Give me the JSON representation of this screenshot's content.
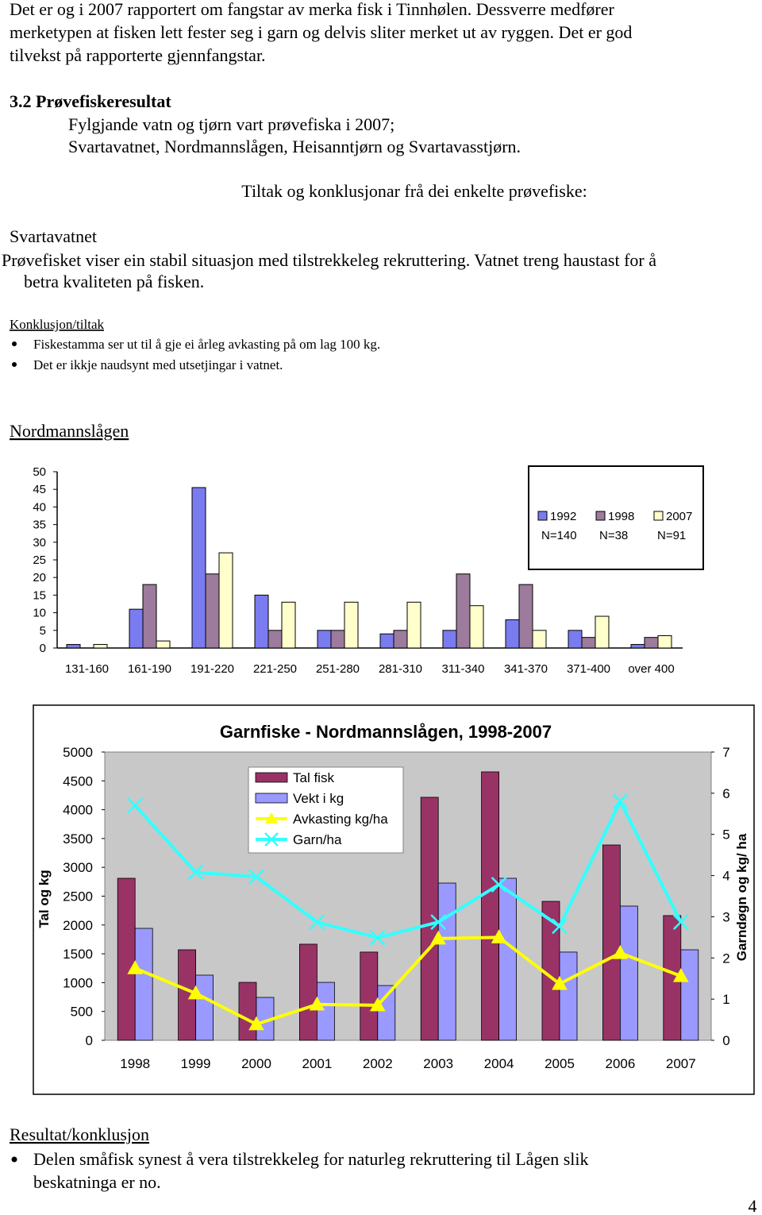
{
  "document": {
    "intro": [
      "Det er og i 2007 rapportert om fangstar av merka fisk i Tinnhølen. Dessverre medfører",
      "merketypen at fisken lett fester seg i garn og delvis sliter merket ut av ryggen. Det er god",
      "tilvekst på rapporterte gjennfangstar."
    ],
    "section": {
      "heading": "3.2 Prøvefiskeresultat",
      "lines": [
        "Fylgjande vatn og tjørn vart prøvefiska i 2007;",
        "Svartavatnet, Nordmannslågen, Heisanntjørn og Svartavasstjørn."
      ]
    },
    "tiltak_heading": "Tiltak og konklusjonar frå dei enkelte prøvefiske:",
    "svartavatnet": {
      "heading": "Svartavatnet",
      "text": [
        "Prøvefisket viser ein stabil situasjon med tilstrekkeleg rekruttering. Vatnet treng haustast for å",
        "betra kvaliteten på fisken."
      ],
      "conclusion_heading": "Konklusjon/tiltak",
      "bullets": [
        "Fiskestamma ser ut til å gje ei årleg avkasting på om lag 100 kg.",
        "Det er ikkje naudsynt med utsetjingar i vatnet."
      ]
    },
    "nordmannslaagen_heading": "Nordmannslågen",
    "result": {
      "heading": "Resultat/konklusjon",
      "bullet": [
        "Delen småfisk synest å vera tilstrekkeleg for naturleg rekruttering til Lågen slik",
        "beskatninga er no."
      ]
    },
    "page_number": "4"
  },
  "chart_data": [
    {
      "type": "bar",
      "categories": [
        "131-160",
        "161-190",
        "191-220",
        "221-250",
        "251-280",
        "281-310",
        "311-340",
        "341-370",
        "371-400",
        "over 400"
      ],
      "series": [
        {
          "name": "1992",
          "color": "#7b7bf0",
          "values": [
            1,
            11,
            45.5,
            15,
            5,
            4,
            5,
            8,
            5,
            1
          ]
        },
        {
          "name": "1998",
          "color": "#9c7b9c",
          "values": [
            0,
            18,
            21,
            5,
            5,
            5,
            21,
            18,
            3,
            3
          ]
        },
        {
          "name": "2007",
          "color": "#ffffcc",
          "values": [
            1,
            2,
            27,
            13,
            13,
            13,
            12,
            5,
            9,
            3.5
          ]
        }
      ],
      "legend_notes": [
        "N=140",
        "N=38",
        "N=91"
      ],
      "ylim": [
        0,
        50
      ],
      "yticks": [
        0,
        5,
        10,
        15,
        20,
        25,
        30,
        35,
        40,
        45,
        50
      ],
      "grid": false,
      "legend": "upper right"
    },
    {
      "type": "bar-line",
      "title": "Garnfiske - Nordmannslågen, 1998-2007",
      "ylabel": "Tal og kg",
      "y2label": "Garndøgn og kg/ ha",
      "categories": [
        "1998",
        "1999",
        "2000",
        "2001",
        "2002",
        "2003",
        "2004",
        "2005",
        "2006",
        "2007"
      ],
      "series": [
        {
          "name": "Tal fisk",
          "type": "bar",
          "color": "#993366",
          "values": [
            2810,
            1570,
            1005,
            1667,
            1530,
            4215,
            4656,
            2410,
            3388,
            2163
          ]
        },
        {
          "name": "Vekt i kg",
          "type": "bar",
          "color": "#9999ff",
          "values": [
            1942,
            1130,
            744,
            1005,
            950,
            2727,
            2810,
            1530,
            2328,
            1570
          ]
        },
        {
          "name": "Avkasting kg/ha",
          "type": "line",
          "axis": "y2",
          "marker": "triangle",
          "color": "#ffff00",
          "values": [
            1.75,
            1.14,
            0.39,
            0.87,
            0.85,
            2.47,
            2.5,
            1.37,
            2.12,
            1.56
          ]
        },
        {
          "name": "Garn/ha",
          "type": "line",
          "axis": "y2",
          "marker": "x",
          "color": "#33ffff",
          "values": [
            5.7,
            4.08,
            3.97,
            2.87,
            2.49,
            2.87,
            3.78,
            2.77,
            5.8,
            2.87
          ]
        }
      ],
      "ylim": [
        0,
        5000
      ],
      "yticks": [
        0,
        500,
        1000,
        1500,
        2000,
        2500,
        3000,
        3500,
        4000,
        4500,
        5000
      ],
      "y2lim": [
        0,
        7
      ],
      "y2ticks": [
        0,
        1,
        2,
        3,
        4,
        5,
        6,
        7
      ],
      "plot_background": "#c8c8c8",
      "grid": false,
      "legend": "upper left"
    }
  ]
}
